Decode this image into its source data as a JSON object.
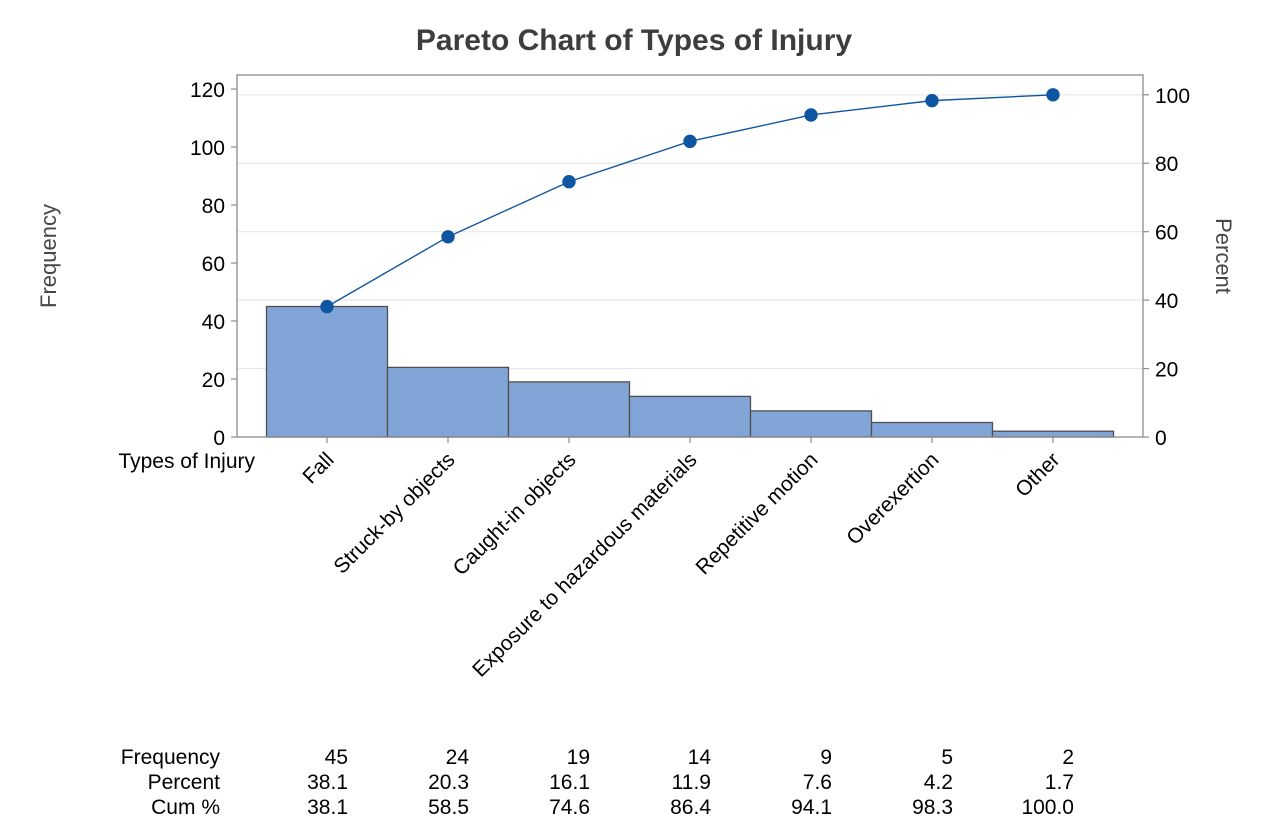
{
  "window": {
    "background": "#ffffff"
  },
  "chart_data": {
    "type": "bar",
    "subtype": "pareto-with-cumulative-line",
    "title": "Pareto Chart of Types of Injury",
    "categories": [
      "Fall",
      "Struck-by objects",
      "Caught-in objects",
      "Exposure to hazardous materials",
      "Repetitive motion",
      "Overexertion",
      "Other"
    ],
    "series": [
      {
        "name": "Frequency",
        "type": "bar",
        "values": [
          45,
          24,
          19,
          14,
          9,
          5,
          2
        ]
      },
      {
        "name": "Cumulative Percent",
        "type": "line",
        "values": [
          38.1,
          58.5,
          74.6,
          86.4,
          94.1,
          98.3,
          100.0
        ],
        "cum_frequency": [
          45,
          69,
          88,
          102,
          111,
          116,
          118
        ]
      }
    ],
    "total": 118,
    "left_axis": {
      "label": "Frequency",
      "ticks": [
        0,
        20,
        40,
        60,
        80,
        100,
        120
      ],
      "range": [
        0,
        120
      ]
    },
    "right_axis": {
      "label": "Percent",
      "ticks": [
        0,
        20,
        40,
        60,
        80,
        100
      ],
      "range": [
        0,
        100
      ]
    },
    "x_axis": {
      "label": "Types of Injury"
    },
    "grid": {
      "horizontal_at_percent": [
        20,
        40,
        60,
        80,
        100
      ]
    },
    "table": {
      "rows": [
        {
          "label": "Frequency",
          "values": [
            "45",
            "24",
            "19",
            "14",
            "9",
            "5",
            "2"
          ]
        },
        {
          "label": "Percent",
          "values": [
            "38.1",
            "20.3",
            "16.1",
            "11.9",
            "7.6",
            "4.2",
            "1.7"
          ]
        },
        {
          "label": "Cum %",
          "values": [
            "38.1",
            "58.5",
            "74.6",
            "86.4",
            "94.1",
            "98.3",
            "100.0"
          ]
        }
      ]
    },
    "colors": {
      "bar_fill": "#82a5d8",
      "bar_border": "#4f4f4f",
      "line": "#0f56a2",
      "marker": "#0f56a2",
      "gridline": "#e7e7e7",
      "frame": "#8c8c8c",
      "title_text": "#3d3d3d",
      "axis_title_text": "#474747",
      "tick_text": "#000000"
    }
  }
}
